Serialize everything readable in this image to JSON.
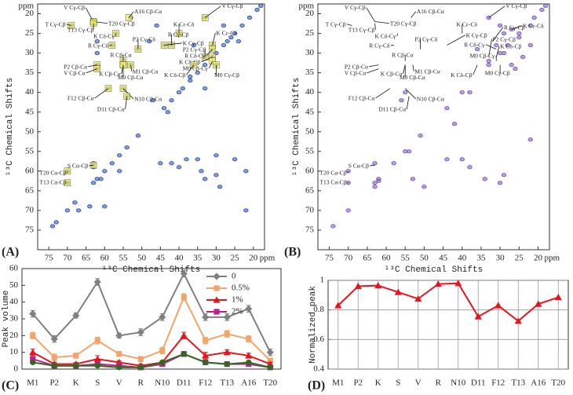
{
  "chart_data": [
    {
      "panel": "(A)",
      "type": "spectrum",
      "xlabel": "¹³C Chemical Shifts",
      "ylabel": "¹³C Chemical Shifts",
      "xunit": "ppm",
      "yunit": "ppm",
      "xlim": [
        78,
        17
      ],
      "ylim": [
        80,
        17.5
      ],
      "xticks": [
        75,
        70,
        65,
        60,
        55,
        50,
        45,
        40,
        35,
        30,
        25,
        20
      ],
      "yticks": [
        20,
        25,
        30,
        35,
        40,
        45,
        50,
        55,
        60,
        65,
        70,
        75
      ],
      "color": "#2a4fb0",
      "highlight_color": "#f3ee5a",
      "peaks": {
        "x": [
          74,
          73,
          70,
          68,
          63,
          62,
          60,
          58,
          56,
          54,
          51,
          44,
          42,
          40,
          39,
          37,
          35,
          33,
          31,
          30,
          28,
          27,
          25,
          23,
          21,
          19,
          18,
          69,
          63,
          62,
          62,
          57,
          58,
          55,
          55,
          53,
          51,
          62,
          62,
          59,
          55,
          54,
          53,
          63,
          63,
          61,
          70,
          70,
          64,
          67,
          56,
          45,
          42,
          40,
          38,
          35,
          34,
          33,
          22,
          22,
          30,
          29,
          25,
          33,
          40,
          42,
          44,
          31,
          33,
          31,
          31,
          36,
          30,
          46,
          36,
          28,
          26,
          24,
          33,
          37,
          47,
          43,
          60,
          30,
          48
        ],
        "y": [
          74,
          73,
          70,
          68,
          63,
          62,
          60,
          58,
          56,
          54,
          51,
          44,
          42,
          40,
          39,
          37,
          35,
          33,
          31,
          30,
          28,
          27,
          25,
          23,
          21,
          19,
          18,
          23,
          22,
          27,
          30,
          25,
          28,
          32,
          33,
          33,
          29,
          33,
          34,
          39,
          39,
          41,
          21,
          58,
          59,
          62,
          60,
          63,
          69,
          70,
          60,
          58,
          58,
          59,
          57,
          57,
          60,
          62,
          60,
          70,
          61,
          64,
          57,
          21,
          25,
          28,
          28,
          28,
          31,
          29,
          31,
          33,
          33,
          23,
          28,
          23,
          26,
          27,
          39,
          36,
          42,
          45,
          69,
          56,
          27
        ]
      },
      "annotations": [
        {
          "text": "A16 Cβ-Cα",
          "x": 53.5,
          "y": 21,
          "tx": 52,
          "ty": 19.6
        },
        {
          "text": "V Cγ-Cβ",
          "x": 63,
          "y": 22,
          "tx": 71,
          "ty": 18.6
        },
        {
          "text": "T Cγ-Cβ",
          "x": 69,
          "y": 23,
          "tx": 76,
          "ty": 22.8
        },
        {
          "text": "T20 Cγ-Cβ",
          "x": 63,
          "y": 22,
          "tx": 59,
          "ty": 22.6
        },
        {
          "text": "T13 Cγ-Cβ",
          "x": 63,
          "y": 22.4,
          "tx": 70,
          "ty": 24.2
        },
        {
          "text": "K Cδ-Cγ",
          "x": 57,
          "y": 25,
          "tx": 63,
          "ty": 25.8
        },
        {
          "text": "R Cγ-Cδ",
          "x": 58,
          "y": 28,
          "tx": 64.5,
          "ty": 28.2
        },
        {
          "text": "P2 Cγ-Cδ",
          "x": 51,
          "y": 29,
          "tx": 52.5,
          "ty": 26.6
        },
        {
          "text": "R Cβ-Cα",
          "x": 55,
          "y": 32,
          "tx": 58.5,
          "ty": 30.6
        },
        {
          "text": "P2 Cβ-Cα",
          "x": 62,
          "y": 33,
          "tx": 71,
          "ty": 33.6
        },
        {
          "text": "V Cβ-Cα",
          "x": 62,
          "y": 34,
          "tx": 71,
          "ty": 35.2
        },
        {
          "text": "K Cβ-Cα",
          "x": 55,
          "y": 33,
          "tx": 61.5,
          "ty": 35.4
        },
        {
          "text": "M1 Cβ-Cα",
          "x": 53,
          "y": 33,
          "tx": 52.5,
          "ty": 34.8
        },
        {
          "text": "M0 Cβ-Cα",
          "x": 55,
          "y": 33,
          "tx": 56.5,
          "ty": 36.3
        },
        {
          "text": "F12 Cβ-Cα",
          "x": 59,
          "y": 39,
          "tx": 70,
          "ty": 41.6
        },
        {
          "text": "N10 Cβ-Cα",
          "x": 55,
          "y": 39,
          "tx": 52,
          "ty": 41.8
        },
        {
          "text": "D11 Cβ-Cα",
          "x": 54,
          "y": 41,
          "tx": 62,
          "ty": 44.4
        },
        {
          "text": "S Cα-Cβ",
          "x": 63,
          "y": 58.5,
          "tx": 70,
          "ty": 58.8
        },
        {
          "text": "T20 Cα-Cβ",
          "x": 70,
          "y": 60,
          "tx": 77.5,
          "ty": 60.6
        },
        {
          "text": "T13 Cα-Cβ",
          "x": 70,
          "y": 63,
          "tx": 77.5,
          "ty": 63
        },
        {
          "text": "V Cγ-Cβ",
          "x": 33,
          "y": 21,
          "tx": 28.5,
          "ty": 18.2
        },
        {
          "text": "K Cε-Cδ",
          "x": 40,
          "y": 25,
          "tx": 41.5,
          "ty": 22.8
        },
        {
          "text": "R Cγ-Cβ",
          "x": 42,
          "y": 28,
          "tx": 43,
          "ty": 25.4
        },
        {
          "text": "K Cε-Cδ",
          "x": 31,
          "y": 28,
          "tx": 30,
          "ty": 25
        },
        {
          "text": "K Cγ-Cβ",
          "x": 44,
          "y": 28,
          "tx": 39,
          "ty": 27.6
        },
        {
          "text": "P2 Cγ-Cβ",
          "x": 33,
          "y": 31,
          "tx": 39,
          "ty": 29.2
        },
        {
          "text": "R Cδ-Cγ",
          "x": 31,
          "y": 29,
          "tx": 38.5,
          "ty": 30.8
        },
        {
          "text": "K Cδ-Cβ",
          "x": 31,
          "y": 31,
          "tx": 40,
          "ty": 32.4
        },
        {
          "text": "M0 Cβ-Cγ",
          "x": 31,
          "y": 32,
          "tx": 39,
          "ty": 34
        },
        {
          "text": "K Cδ-Cβ",
          "x": 36,
          "y": 33,
          "tx": 44,
          "ty": 35.7
        },
        {
          "text": "M0 Cγ-Cβ",
          "x": 30,
          "y": 33,
          "tx": 30.5,
          "ty": 35.7
        }
      ]
    },
    {
      "panel": "(B)",
      "type": "spectrum",
      "xlabel": "¹³C Chemical Shifts",
      "ylabel": "¹³C Chemical Shifts",
      "xunit": "ppm",
      "yunit": "ppm",
      "xlim": [
        78,
        17
      ],
      "ylim": [
        80,
        17.5
      ],
      "xticks": [
        75,
        70,
        65,
        60,
        55,
        50,
        45,
        40,
        35,
        30,
        25,
        20
      ],
      "yticks": [
        20,
        25,
        30,
        35,
        40,
        45,
        50,
        55,
        60,
        65,
        70,
        75
      ],
      "color": "#7a54c0",
      "peaks": {
        "x": [
          74,
          70,
          63,
          62,
          58,
          55,
          51,
          44,
          40,
          33,
          30,
          28,
          25,
          21,
          19,
          18,
          33,
          30,
          29,
          27,
          25,
          22,
          31,
          29,
          63,
          70,
          70,
          63,
          62,
          53,
          50,
          40,
          38,
          34,
          30,
          29,
          22,
          44,
          54,
          55,
          56,
          27,
          26,
          24,
          22,
          36,
          33,
          38,
          42
        ],
        "y": [
          74,
          70,
          63,
          62,
          58,
          55,
          51,
          44,
          40,
          33,
          30,
          28,
          25,
          21,
          19,
          18,
          21,
          23,
          25,
          24,
          26,
          23,
          28,
          30,
          58,
          60,
          63,
          64,
          62.5,
          62,
          64,
          57,
          59,
          62,
          63,
          61,
          52,
          57,
          55,
          40,
          42,
          33,
          34,
          31,
          28,
          29,
          32,
          40,
          48
        ]
      },
      "annotations": [
        {
          "text": "A16 Cβ-Cα",
          "x": 53.5,
          "y": 21,
          "tx": 52,
          "ty": 19.6
        },
        {
          "text": "V Cγ-Cβ",
          "x": 63,
          "y": 22,
          "tx": 71,
          "ty": 18.6
        },
        {
          "text": "T Cγ-Cβ",
          "x": 69,
          "y": 23,
          "tx": 76,
          "ty": 22.8
        },
        {
          "text": "T20 Cγ-Cβ",
          "x": 63,
          "y": 22,
          "tx": 59,
          "ty": 22.6
        },
        {
          "text": "T13 Cγ-Cβ",
          "x": 63,
          "y": 22.4,
          "tx": 70,
          "ty": 24.2
        },
        {
          "text": "K Cδ-Cγ",
          "x": 57,
          "y": 25,
          "tx": 63,
          "ty": 25.8
        },
        {
          "text": "R Cγ-Cδ",
          "x": 58,
          "y": 28,
          "tx": 64.5,
          "ty": 28.2
        },
        {
          "text": "P2 Cγ-Cδ",
          "x": 51,
          "y": 29,
          "tx": 52.5,
          "ty": 26.6
        },
        {
          "text": "R Cβ-Cα",
          "x": 55,
          "y": 32,
          "tx": 58.5,
          "ty": 30.6
        },
        {
          "text": "P2 Cβ-Cα",
          "x": 62,
          "y": 33,
          "tx": 71,
          "ty": 33.6
        },
        {
          "text": "V Cβ-Cα",
          "x": 62,
          "y": 34,
          "tx": 71,
          "ty": 35.2
        },
        {
          "text": "K Cβ-Cα",
          "x": 55,
          "y": 33,
          "tx": 61.5,
          "ty": 35.4
        },
        {
          "text": "M1 Cβ-Cα",
          "x": 53,
          "y": 33,
          "tx": 52.5,
          "ty": 34.8
        },
        {
          "text": "M0 Cβ-Cα",
          "x": 55,
          "y": 33,
          "tx": 56.5,
          "ty": 36.3
        },
        {
          "text": "F12 Cβ-Cα",
          "x": 59,
          "y": 39,
          "tx": 70,
          "ty": 41.6
        },
        {
          "text": "N10 Cβ-Cα",
          "x": 55,
          "y": 39,
          "tx": 52,
          "ty": 41.8
        },
        {
          "text": "D11 Cβ-Cα",
          "x": 54,
          "y": 41,
          "tx": 62,
          "ty": 44.4
        },
        {
          "text": "S Cα-Cβ",
          "x": 63,
          "y": 58.5,
          "tx": 70,
          "ty": 58.8
        },
        {
          "text": "T20 Cα-Cβ",
          "x": 70,
          "y": 60,
          "tx": 77.5,
          "ty": 60.6
        },
        {
          "text": "T13 Cα-Cβ",
          "x": 70,
          "y": 63,
          "tx": 77.5,
          "ty": 63
        },
        {
          "text": "V Cγ-Cβ",
          "x": 33,
          "y": 21,
          "tx": 28.5,
          "ty": 18.2
        },
        {
          "text": "K Cε-Cδ",
          "x": 40,
          "y": 25,
          "tx": 41.5,
          "ty": 22.8
        },
        {
          "text": "R Cγ-Cβ",
          "x": 32,
          "y": 27,
          "tx": 29,
          "ty": 23.6
        },
        {
          "text": "K Cε-Cδ",
          "x": 27,
          "y": 24,
          "tx": 24,
          "ty": 23.2
        },
        {
          "text": "K Cγ-Cβ",
          "x": 44,
          "y": 28,
          "tx": 39,
          "ty": 25.6
        },
        {
          "text": "P2 Cγ-Cβ",
          "x": 33,
          "y": 31,
          "tx": 32,
          "ty": 26.6
        },
        {
          "text": "R Cδ-Cγ",
          "x": 31,
          "y": 29,
          "tx": 39.5,
          "ty": 28
        },
        {
          "text": "K Cδ-Cβ",
          "x": 31,
          "y": 31,
          "tx": 30,
          "ty": 28.4
        },
        {
          "text": "M0 Cβ-Cγ",
          "x": 31,
          "y": 32,
          "tx": 38,
          "ty": 30.8
        },
        {
          "text": "K Cδ-Cβ",
          "x": 36,
          "y": 33,
          "tx": 43,
          "ty": 35.7
        },
        {
          "text": "M0 Cγ-Cβ",
          "x": 30,
          "y": 33,
          "tx": 34,
          "ty": 35.2
        }
      ]
    },
    {
      "panel": "(C)",
      "type": "line",
      "ylabel": "Peak volume",
      "categories": [
        "M1",
        "P2",
        "K",
        "S",
        "V",
        "R",
        "N10",
        "D11",
        "F12",
        "T13",
        "A16",
        "T20"
      ],
      "ylim": [
        0,
        60
      ],
      "yticks": [
        0,
        10,
        20,
        30,
        40,
        50,
        60
      ],
      "legend": "top-right",
      "series": [
        {
          "name": "0",
          "color": "#808080",
          "marker": "diamond",
          "values": [
            33,
            18,
            32,
            52,
            20,
            22,
            31,
            57,
            31,
            31,
            36,
            10
          ],
          "errors": [
            2,
            2,
            1.5,
            2,
            1.5,
            2,
            2,
            2,
            2,
            2,
            2,
            2
          ]
        },
        {
          "name": "0.5%",
          "color": "#f4a46a",
          "marker": "square",
          "values": [
            20,
            7,
            8,
            17,
            9,
            6,
            11,
            43,
            17,
            21,
            18,
            5
          ],
          "errors": [
            2,
            2,
            1.5,
            2,
            1.5,
            1.5,
            2,
            2,
            2,
            2,
            2,
            1.5
          ]
        },
        {
          "name": "1%",
          "color": "#e8141c",
          "marker": "triangle",
          "values": [
            10,
            3,
            3,
            6,
            4,
            2,
            4,
            20,
            8,
            10,
            8,
            3
          ],
          "errors": [
            2,
            1,
            1,
            2,
            1,
            1,
            1,
            2,
            2,
            1.5,
            1.5,
            1
          ]
        },
        {
          "name": "2%",
          "color": "#c0208a",
          "marker": "square",
          "values": [
            6,
            2,
            2,
            3,
            2,
            1,
            3,
            9,
            4,
            3,
            3,
            1
          ],
          "errors": [
            1,
            1,
            1,
            1,
            1,
            1,
            1,
            1.5,
            1,
            1,
            1,
            1
          ]
        },
        {
          "color": "#2f6b1f",
          "marker": "circle",
          "values": [
            4,
            2,
            2,
            2,
            1,
            1,
            4,
            9,
            4,
            3,
            4,
            1
          ]
        }
      ]
    },
    {
      "panel": "(D)",
      "type": "line",
      "ylabel": "Normalized peak",
      "categories": [
        "M1",
        "P2",
        "K",
        "S",
        "V",
        "R",
        "N10",
        "D11",
        "F12",
        "T13",
        "A16",
        "T20"
      ],
      "ylim": [
        0.4,
        1
      ],
      "yticks": [
        0.4,
        0.6,
        0.8,
        1
      ],
      "grid": true,
      "xgrid": true,
      "series": [
        {
          "color": "#e8141c",
          "marker": "triangle",
          "values": [
            0.83,
            0.96,
            0.965,
            0.92,
            0.875,
            0.975,
            0.98,
            0.755,
            0.83,
            0.725,
            0.84,
            0.885
          ]
        }
      ]
    }
  ]
}
